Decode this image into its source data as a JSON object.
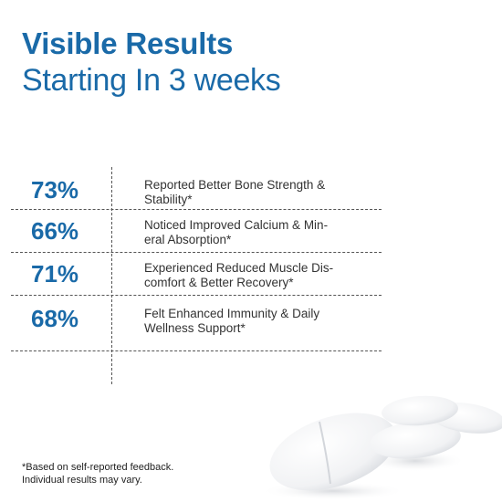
{
  "headline": {
    "bold": "Visible Results",
    "light": "Starting In 3 weeks"
  },
  "stats": [
    {
      "value": "73%",
      "line1": "Reported Better Bone Strength &",
      "line2": "Stability*"
    },
    {
      "value": "66%",
      "line1": "Noticed Improved Calcium & Min-",
      "line2": "eral Absorption*"
    },
    {
      "value": "71%",
      "line1": "Experienced Reduced Muscle Dis-",
      "line2": "comfort & Better Recovery*"
    },
    {
      "value": "68%",
      "line1": "Felt Enhanced Immunity & Daily",
      "line2": "Wellness Support*"
    }
  ],
  "footnote": {
    "line1": "*Based on self-reported feedback.",
    "line2": "Individual results may vary."
  },
  "colors": {
    "accent": "#1a6aa8",
    "text": "#333333",
    "divider": "#555555"
  },
  "image": "white-calcium-tablets"
}
